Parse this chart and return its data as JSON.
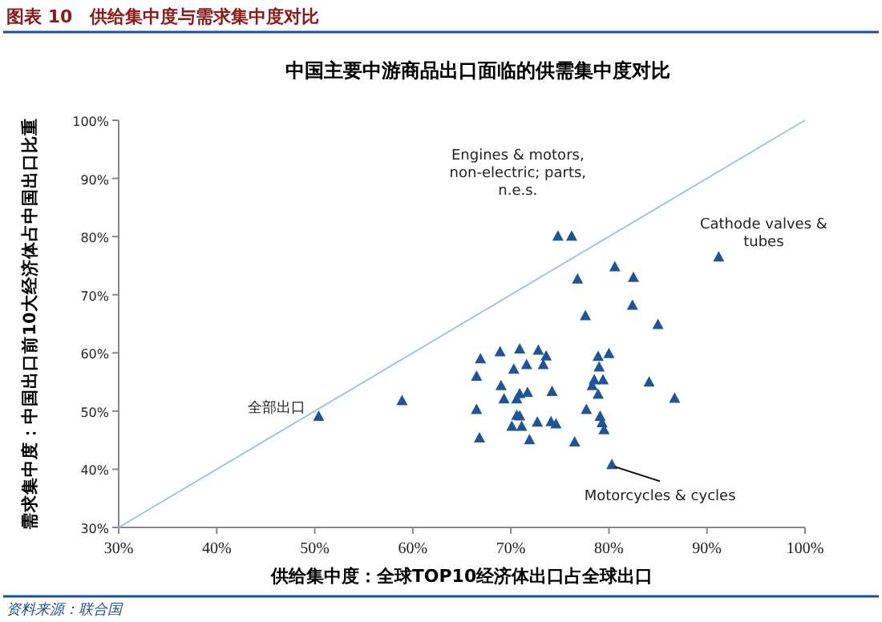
{
  "chart_data": {
    "type": "scatter",
    "title": "图表 10　供给集中度与需求集中度对比",
    "subtitle": "中国主要中游商品出口面临的供需集中度对比",
    "xlabel": "供给集中度：全球TOP10经济体出口占全球出口",
    "ylabel": "需求集中度：中国出口前10大经济体占中国出口比重",
    "xlim": [
      30,
      100
    ],
    "ylim": [
      30,
      100
    ],
    "xticks": [
      {
        "value": 30,
        "label": "30%"
      },
      {
        "value": 40,
        "label": "40%"
      },
      {
        "value": 50,
        "label": "50%"
      },
      {
        "value": 60,
        "label": "60%"
      },
      {
        "value": 70,
        "label": "70%"
      },
      {
        "value": 80,
        "label": "80%"
      },
      {
        "value": 90,
        "label": "90%"
      },
      {
        "value": 100,
        "label": "100%"
      }
    ],
    "yticks": [
      {
        "value": 30,
        "label": "30%"
      },
      {
        "value": 40,
        "label": "40%"
      },
      {
        "value": 50,
        "label": "50%"
      },
      {
        "value": 60,
        "label": "60%"
      },
      {
        "value": 70,
        "label": "70%"
      },
      {
        "value": 80,
        "label": "80%"
      },
      {
        "value": 90,
        "label": "90%"
      },
      {
        "value": 100,
        "label": "100%"
      }
    ],
    "grid": false,
    "series": [
      {
        "color": "#1f5597",
        "marker": "triangle",
        "x": [
          50.4,
          58.9,
          74.8,
          76.2,
          91.2,
          80.6,
          82.5,
          76.8,
          82.4,
          77.6,
          85.0,
          66.9,
          68.9,
          70.9,
          72.8,
          73.6,
          70.3,
          71.6,
          73.3,
          66.5,
          69.0,
          69.3,
          70.6,
          70.9,
          71.7,
          74.2,
          66.5,
          70.6,
          70.9,
          70.1,
          71.1,
          72.7,
          74.1,
          74.6,
          66.8,
          71.9,
          76.5,
          78.9,
          80.0,
          79.0,
          79.4,
          78.5,
          78.3,
          78.9,
          77.7,
          79.1,
          79.3,
          79.5,
          84.1,
          86.7,
          80.3
        ],
        "values": [
          49.0,
          51.7,
          80.0,
          80.0,
          76.4,
          74.7,
          72.9,
          72.6,
          68.1,
          66.3,
          64.8,
          58.9,
          60.1,
          60.6,
          60.4,
          59.4,
          57.1,
          57.9,
          57.9,
          55.9,
          54.3,
          52.0,
          52.0,
          52.9,
          53.1,
          53.3,
          50.2,
          49.2,
          49.1,
          47.3,
          47.3,
          48.0,
          48.1,
          47.7,
          45.3,
          45.0,
          44.6,
          59.3,
          59.8,
          57.5,
          55.3,
          55.3,
          54.3,
          52.8,
          50.2,
          49.0,
          47.9,
          46.7,
          54.9,
          52.1,
          40.7
        ]
      },
      {
        "type": "line",
        "color": "#9dc3e6",
        "line_style": "solid",
        "x": [
          30,
          100
        ],
        "values": [
          30,
          100
        ]
      }
    ],
    "annotations": [
      {
        "text": "Engines & motors, non-electric; parts, n.e.s.",
        "x": 74.8,
        "y": 80.0
      },
      {
        "text": "Cathode valves & tubes",
        "x": 91.2,
        "y": 76.4
      },
      {
        "text": "全部出口",
        "x": 50.4,
        "y": 49.0
      },
      {
        "text": "Motorcycles & cycles",
        "x": 80.3,
        "y": 40.7
      },
      "资料来源：联合国"
    ]
  }
}
